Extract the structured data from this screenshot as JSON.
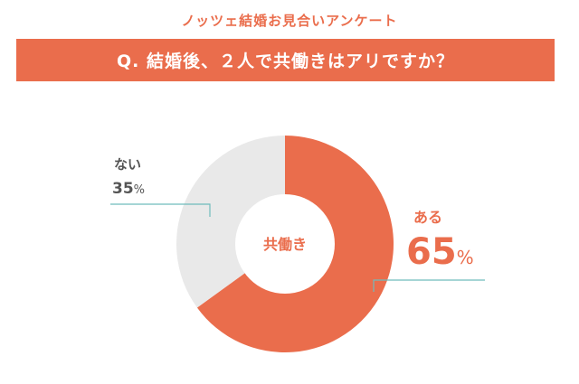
{
  "survey_title": "ノッツェ結婚お見合いアンケート",
  "question": "Q. 結婚後、２人で共働きはアリですか？",
  "center_label": "共働き",
  "colors": {
    "accent": "#ea6d4c",
    "secondary": "#e9e9e9",
    "leader_line": "#6fbcbc",
    "text_gray": "#555555",
    "white": "#ffffff"
  },
  "chart_data": {
    "type": "pie",
    "donut": true,
    "categories": [
      "ある",
      "ない"
    ],
    "values": [
      65,
      35
    ],
    "unit": "%",
    "value_labels": [
      "65",
      "35"
    ],
    "title": "Q. 結婚後、２人で共働きはアリですか？",
    "legend": "none"
  }
}
